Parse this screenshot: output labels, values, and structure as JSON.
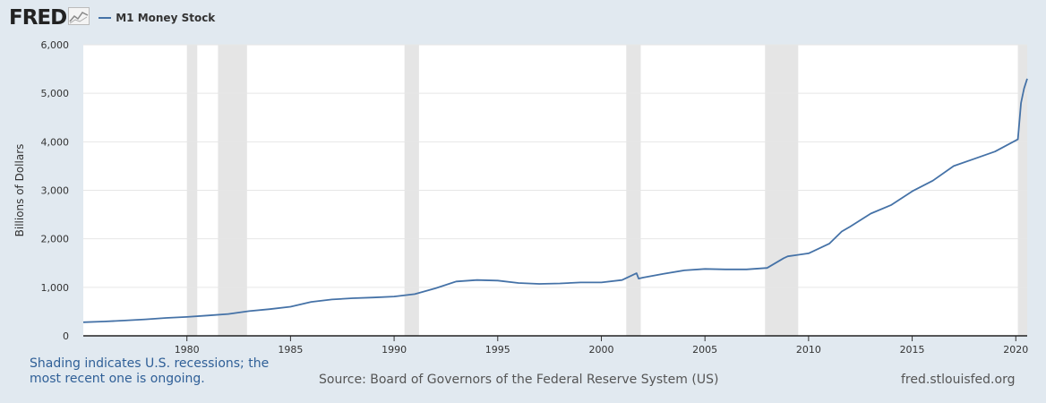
{
  "header": {
    "logo_text": "FRED",
    "logo_icon": "chart-line-icon",
    "legend_label": "M1 Money Stock"
  },
  "footer": {
    "recession_note": "Shading indicates U.S. recessions; the most recent one is ongoing.",
    "source": "Source: Board of Governors of the Federal Reserve System (US)",
    "url": "fred.stlouisfed.org"
  },
  "colors": {
    "series": "#4572a7",
    "recession": "#e5e5e5",
    "background": "#e1e9f0",
    "plot_background": "#ffffff"
  },
  "chart_data": {
    "type": "line",
    "title": "",
    "xlabel": "",
    "ylabel": "Billions of Dollars",
    "xlim": [
      1975.0,
      2020.55
    ],
    "ylim": [
      0,
      6000
    ],
    "x_ticks": [
      1980,
      1985,
      1990,
      1995,
      2000,
      2005,
      2010,
      2015,
      2020
    ],
    "y_ticks": [
      0,
      1000,
      2000,
      3000,
      4000,
      5000,
      6000
    ],
    "y_tick_labels": [
      "0",
      "1,000",
      "2,000",
      "3,000",
      "4,000",
      "5,000",
      "6,000"
    ],
    "grid": true,
    "recessions": [
      [
        1980.0,
        1980.5
      ],
      [
        1981.5,
        1982.9
      ],
      [
        1990.5,
        1991.2
      ],
      [
        2001.2,
        2001.9
      ],
      [
        2007.9,
        2009.5
      ],
      [
        2020.1,
        2020.55
      ]
    ],
    "series": [
      {
        "name": "M1 Money Stock",
        "x": [
          1975.0,
          1976,
          1977,
          1978,
          1979,
          1980,
          1981,
          1982,
          1983,
          1984,
          1985,
          1986,
          1987,
          1988,
          1989,
          1990,
          1991,
          1992,
          1993,
          1994,
          1995,
          1996,
          1997,
          1998,
          1999,
          2000,
          2001,
          2001.7,
          2001.8,
          2002,
          2003,
          2004,
          2005,
          2006,
          2007,
          2008,
          2008.8,
          2009,
          2010,
          2011,
          2011.6,
          2012,
          2013,
          2014,
          2015,
          2016,
          2017,
          2018,
          2019,
          2020.1,
          2020.25,
          2020.4,
          2020.55
        ],
        "y": [
          280,
          295,
          315,
          340,
          370,
          390,
          420,
          450,
          510,
          550,
          600,
          700,
          750,
          775,
          790,
          810,
          860,
          980,
          1120,
          1150,
          1140,
          1090,
          1070,
          1080,
          1100,
          1100,
          1150,
          1290,
          1180,
          1200,
          1280,
          1350,
          1380,
          1370,
          1370,
          1400,
          1600,
          1640,
          1700,
          1900,
          2150,
          2250,
          2520,
          2700,
          2980,
          3200,
          3500,
          3650,
          3800,
          4050,
          4800,
          5100,
          5300
        ]
      }
    ]
  }
}
